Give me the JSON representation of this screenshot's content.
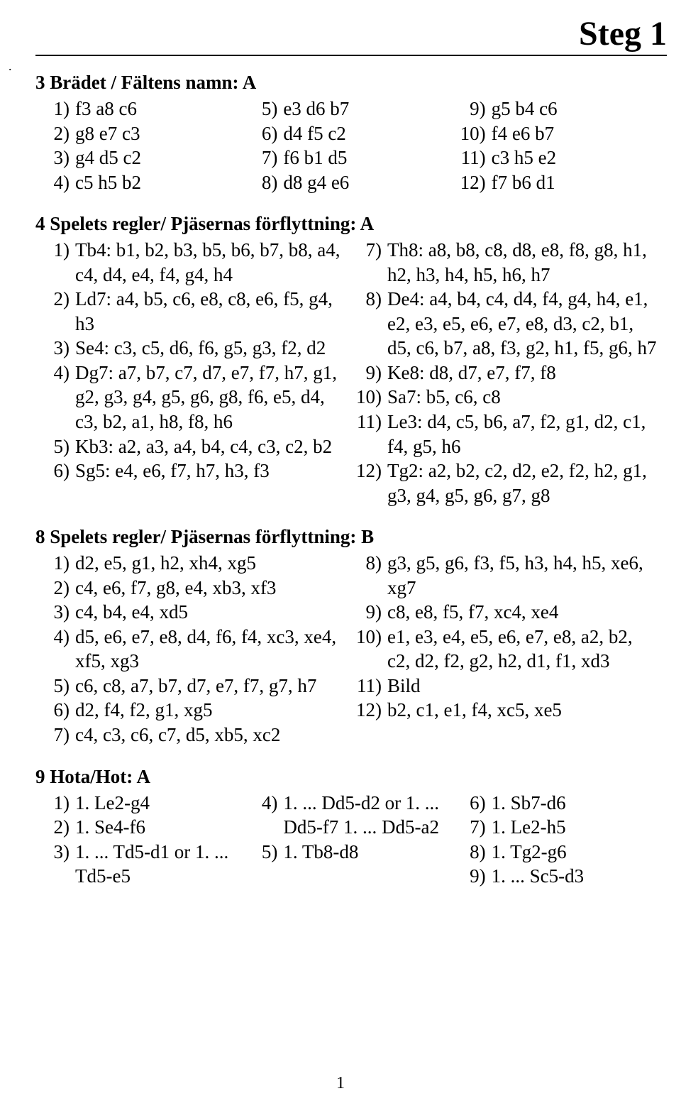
{
  "title": "Steg 1",
  "dot": ".",
  "page_number": "1",
  "sections": {
    "s1": {
      "heading": "3 Brädet / Fältens namn: A",
      "col1": [
        {
          "n": "1)",
          "b": "f3 a8 c6"
        },
        {
          "n": "2)",
          "b": "g8 e7 c3"
        },
        {
          "n": "3)",
          "b": "g4 d5 c2"
        },
        {
          "n": "4)",
          "b": "c5 h5 b2"
        }
      ],
      "col2": [
        {
          "n": "5)",
          "b": "e3 d6 b7"
        },
        {
          "n": "6)",
          "b": "d4 f5 c2"
        },
        {
          "n": "7)",
          "b": "f6 b1 d5"
        },
        {
          "n": "8)",
          "b": "d8 g4 e6"
        }
      ],
      "col3": [
        {
          "n": "9)",
          "b": "g5 b4 c6"
        },
        {
          "n": "10)",
          "b": "f4 e6 b7"
        },
        {
          "n": "11)",
          "b": "c3 h5 e2"
        },
        {
          "n": "12)",
          "b": "f7 b6 d1"
        }
      ]
    },
    "s2": {
      "heading": "4 Spelets regler/ Pjäsernas förflyttning: A",
      "col1": [
        {
          "n": "1)",
          "b": "Tb4: b1, b2, b3, b5, b6, b7, b8, a4, c4, d4, e4, f4, g4, h4"
        },
        {
          "n": "2)",
          "b": "Ld7: a4, b5, c6, e8, c8, e6, f5, g4, h3"
        },
        {
          "n": "3)",
          "b": "Se4: c3, c5, d6, f6, g5, g3, f2, d2"
        },
        {
          "n": "4)",
          "b": "Dg7: a7, b7, c7, d7, e7, f7, h7, g1, g2, g3, g4, g5, g6, g8, f6, e5, d4, c3, b2, a1, h8, f8, h6"
        },
        {
          "n": "5)",
          "b": "Kb3: a2, a3, a4, b4, c4, c3, c2, b2"
        },
        {
          "n": "6)",
          "b": "Sg5: e4, e6, f7, h7, h3, f3"
        }
      ],
      "col2": [
        {
          "n": "7)",
          "b": "Th8: a8, b8, c8, d8, e8, f8, g8, h1, h2, h3, h4, h5, h6, h7"
        },
        {
          "n": "8)",
          "b": "De4: a4, b4, c4, d4, f4, g4, h4, e1, e2, e3, e5, e6, e7, e8, d3, c2, b1, d5, c6, b7, a8, f3, g2, h1, f5, g6, h7"
        },
        {
          "n": "9)",
          "b": "Ke8: d8, d7, e7, f7, f8"
        },
        {
          "n": "10)",
          "b": "Sa7: b5, c6, c8"
        },
        {
          "n": "11)",
          "b": "Le3: d4, c5, b6, a7, f2, g1, d2, c1, f4, g5, h6"
        },
        {
          "n": "12)",
          "b": "Tg2: a2, b2, c2, d2, e2, f2, h2, g1, g3, g4, g5, g6, g7, g8"
        }
      ]
    },
    "s3": {
      "heading": "8 Spelets regler/ Pjäsernas förflyttning: B",
      "col1": [
        {
          "n": "1)",
          "b": "d2, e5, g1, h2, xh4, xg5"
        },
        {
          "n": "2)",
          "b": "c4, e6, f7, g8, e4, xb3, xf3"
        },
        {
          "n": "3)",
          "b": "c4, b4, e4, xd5"
        },
        {
          "n": "4)",
          "b": "d5, e6, e7, e8, d4, f6, f4, xc3, xe4, xf5, xg3"
        },
        {
          "n": "5)",
          "b": "c6, c8, a7, b7, d7, e7, f7, g7, h7"
        },
        {
          "n": "6)",
          "b": "d2, f4, f2, g1, xg5"
        },
        {
          "n": "7)",
          "b": "c4, c3, c6, c7, d5, xb5, xc2"
        }
      ],
      "col2": [
        {
          "n": "8)",
          "b": "g3, g5, g6, f3, f5, h3, h4, h5, xe6, xg7"
        },
        {
          "n": "9)",
          "b": "c8, e8, f5, f7, xc4, xe4"
        },
        {
          "n": "10)",
          "b": "e1, e3, e4, e5, e6, e7, e8, a2, b2, c2, d2, f2, g2, h2, d1, f1, xd3"
        },
        {
          "n": "11)",
          "b": "Bild"
        },
        {
          "n": "12)",
          "b": "b2, c1, e1, f4, xc5, xe5"
        }
      ]
    },
    "s4": {
      "heading": "9 Hota/Hot: A",
      "col1": [
        {
          "n": "1)",
          "b": "1. Le2-g4"
        },
        {
          "n": "2)",
          "b": "1. Se4-f6"
        },
        {
          "n": "3)",
          "b": "1. ... Td5-d1 or 1. ... Td5-e5"
        }
      ],
      "col2": [
        {
          "n": "4)",
          "b": "1. ... Dd5-d2 or 1. ... Dd5-f7 1. ... Dd5-a2"
        },
        {
          "n": "5)",
          "b": "1. Tb8-d8"
        }
      ],
      "col3": [
        {
          "n": "6)",
          "b": "1. Sb7-d6"
        },
        {
          "n": "7)",
          "b": "1. Le2-h5"
        },
        {
          "n": "8)",
          "b": "1. Tg2-g6"
        },
        {
          "n": "9)",
          "b": "1. ... Sc5-d3"
        }
      ]
    }
  }
}
